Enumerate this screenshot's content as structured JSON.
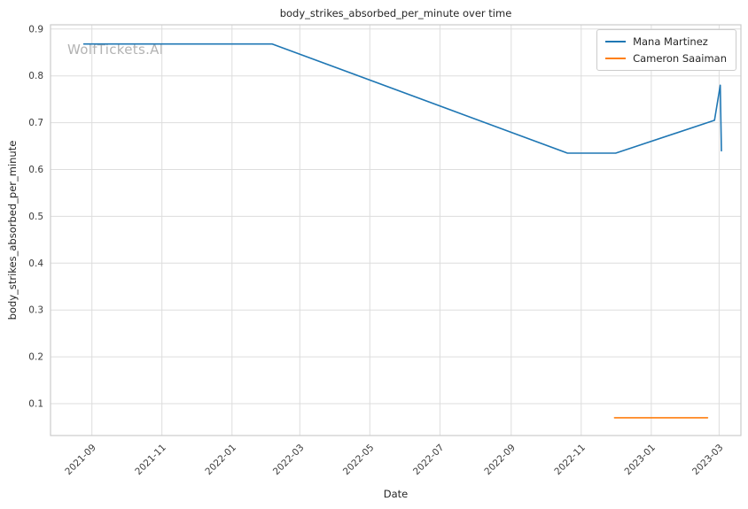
{
  "chart_data": {
    "type": "line",
    "title": "body_strikes_absorbed_per_minute over time",
    "xlabel": "Date",
    "ylabel": "body_strikes_absorbed_per_minute",
    "watermark": "WolfTickets.AI",
    "grid": true,
    "legend_position": "upper right",
    "x_tick_labels": [
      "2021-09",
      "2021-11",
      "2022-01",
      "2022-03",
      "2022-05",
      "2022-07",
      "2022-09",
      "2022-11",
      "2023-01",
      "2023-03"
    ],
    "x_tick_dates": [
      "2021-09-01",
      "2021-11-01",
      "2022-01-01",
      "2022-03-01",
      "2022-05-01",
      "2022-07-01",
      "2022-09-01",
      "2022-11-01",
      "2023-01-01",
      "2023-03-01"
    ],
    "y_ticks": [
      0.1,
      0.2,
      0.3,
      0.4,
      0.5,
      0.6,
      0.7,
      0.8,
      0.9
    ],
    "xlim": [
      "2021-07-27",
      "2023-03-20"
    ],
    "ylim": [
      0.032,
      0.909
    ],
    "series": [
      {
        "name": "Mana Martinez",
        "color": "#1f77b4",
        "points": [
          {
            "date": "2021-08-25",
            "value": 0.868
          },
          {
            "date": "2022-02-05",
            "value": 0.868
          },
          {
            "date": "2022-10-20",
            "value": 0.635
          },
          {
            "date": "2022-12-01",
            "value": 0.635
          },
          {
            "date": "2023-02-25",
            "value": 0.705
          },
          {
            "date": "2023-03-02",
            "value": 0.78
          },
          {
            "date": "2023-03-03",
            "value": 0.64
          }
        ]
      },
      {
        "name": "Cameron Saaiman",
        "color": "#ff7f0e",
        "points": [
          {
            "date": "2022-11-30",
            "value": 0.07
          },
          {
            "date": "2023-02-19",
            "value": 0.07
          }
        ]
      }
    ]
  }
}
